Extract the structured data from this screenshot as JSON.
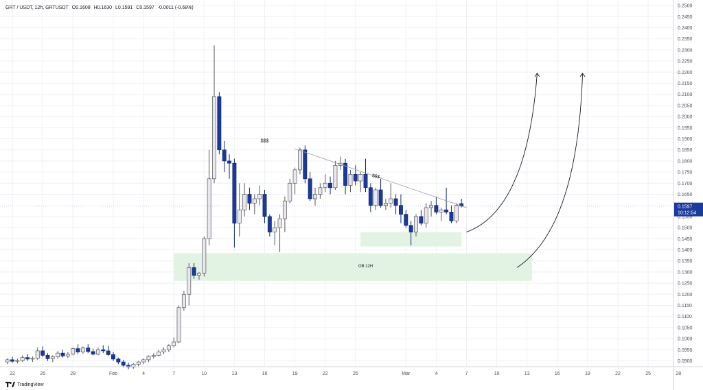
{
  "legend": {
    "symbol": "GRT / USDT, 12h, GRTUSDT",
    "open": "O0.1608",
    "high": "H0.1630",
    "low": "L0.1591",
    "close": "C0.1597",
    "change": "-0.0011 (-0.68%)"
  },
  "price_tag": {
    "price": "0.1597",
    "countdown": "10:12:54"
  },
  "brand": {
    "name": "TradingView"
  },
  "annotations": {
    "liquidity_top": "$$$",
    "liquidity_trend": "$$$",
    "order_block": "OB 12H"
  },
  "colors": {
    "bull_body": "#e8e8ee",
    "bull_border": "#555555",
    "bear_body": "#1a3a9c",
    "bear_border": "#0f2670",
    "zone": "#e3f3e3",
    "price_tag": "#1a3a9c",
    "grid": "#eef0f4",
    "axis_text": "#4a4e5a"
  },
  "chart_data": {
    "type": "candlestick",
    "timeframe": "12h",
    "ylim": [
      0.088,
      0.2525
    ],
    "y_ticks": [
      "0.0900",
      "0.0950",
      "0.1000",
      "0.1050",
      "0.1100",
      "0.1150",
      "0.1200",
      "0.1250",
      "0.1300",
      "0.1350",
      "0.1400",
      "0.1450",
      "0.1500",
      "0.1550",
      "0.1650",
      "0.1700",
      "0.1750",
      "0.1800",
      "0.1850",
      "0.1900",
      "0.1950",
      "0.2000",
      "0.2050",
      "0.2100",
      "0.2150",
      "0.2200",
      "0.2250",
      "0.2300",
      "0.2350",
      "0.2400",
      "0.2450",
      "0.2500"
    ],
    "x_ticks": [
      {
        "label": "22",
        "day": -10
      },
      {
        "label": "25",
        "day": -7
      },
      {
        "label": "28",
        "day": -4
      },
      {
        "label": "Feb",
        "day": 0
      },
      {
        "label": "4",
        "day": 3
      },
      {
        "label": "7",
        "day": 6
      },
      {
        "label": "10",
        "day": 9
      },
      {
        "label": "13",
        "day": 12
      },
      {
        "label": "16",
        "day": 15
      },
      {
        "label": "19",
        "day": 18
      },
      {
        "label": "22",
        "day": 21
      },
      {
        "label": "25",
        "day": 24
      },
      {
        "label": "Mar",
        "day": 29
      },
      {
        "label": "4",
        "day": 32
      },
      {
        "label": "7",
        "day": 35
      },
      {
        "label": "10",
        "day": 38
      },
      {
        "label": "13",
        "day": 41
      },
      {
        "label": "16",
        "day": 44
      },
      {
        "label": "19",
        "day": 47
      },
      {
        "label": "22",
        "day": 50
      },
      {
        "label": "25",
        "day": 53
      },
      {
        "label": "28",
        "day": 56
      }
    ],
    "candles_start_day": -10.5,
    "candles_step_day": 0.5,
    "candles": [
      [
        0.0895,
        0.0912,
        0.0885,
        0.0905
      ],
      [
        0.0905,
        0.0918,
        0.0892,
        0.0898
      ],
      [
        0.0898,
        0.091,
        0.0888,
        0.0902
      ],
      [
        0.0902,
        0.0925,
        0.0895,
        0.0915
      ],
      [
        0.0915,
        0.093,
        0.09,
        0.0908
      ],
      [
        0.0908,
        0.092,
        0.0895,
        0.0912
      ],
      [
        0.0912,
        0.096,
        0.0905,
        0.0945
      ],
      [
        0.0945,
        0.0965,
        0.0918,
        0.0925
      ],
      [
        0.0925,
        0.0935,
        0.09,
        0.091
      ],
      [
        0.091,
        0.0925,
        0.0895,
        0.0918
      ],
      [
        0.0918,
        0.0945,
        0.091,
        0.0935
      ],
      [
        0.0935,
        0.095,
        0.0915,
        0.0922
      ],
      [
        0.0922,
        0.094,
        0.0912,
        0.093
      ],
      [
        0.093,
        0.096,
        0.0925,
        0.0955
      ],
      [
        0.0955,
        0.0975,
        0.093,
        0.094
      ],
      [
        0.094,
        0.0965,
        0.0932,
        0.0958
      ],
      [
        0.0958,
        0.0975,
        0.0935,
        0.0942
      ],
      [
        0.0942,
        0.0955,
        0.0925,
        0.093
      ],
      [
        0.093,
        0.096,
        0.0925,
        0.095
      ],
      [
        0.095,
        0.097,
        0.0935,
        0.0945
      ],
      [
        0.0945,
        0.0968,
        0.0922,
        0.0928
      ],
      [
        0.0928,
        0.094,
        0.09,
        0.0908
      ],
      [
        0.0908,
        0.0915,
        0.0885,
        0.0895
      ],
      [
        0.0895,
        0.0905,
        0.087,
        0.088
      ],
      [
        0.088,
        0.0892,
        0.0862,
        0.0872
      ],
      [
        0.0872,
        0.089,
        0.0865,
        0.0885
      ],
      [
        0.0885,
        0.09,
        0.0875,
        0.0895
      ],
      [
        0.0895,
        0.091,
        0.0885,
        0.0905
      ],
      [
        0.0905,
        0.0925,
        0.0895,
        0.092
      ],
      [
        0.092,
        0.0935,
        0.091,
        0.0925
      ],
      [
        0.0925,
        0.095,
        0.092,
        0.094
      ],
      [
        0.094,
        0.096,
        0.093,
        0.095
      ],
      [
        0.095,
        0.0975,
        0.094,
        0.0968
      ],
      [
        0.0968,
        0.1005,
        0.096,
        0.0985
      ],
      [
        0.0985,
        0.115,
        0.098,
        0.114
      ],
      [
        0.114,
        0.1215,
        0.1125,
        0.12
      ],
      [
        0.12,
        0.134,
        0.115,
        0.132
      ],
      [
        0.132,
        0.134,
        0.127,
        0.1285
      ],
      [
        0.1285,
        0.13,
        0.1265,
        0.1295
      ],
      [
        0.1295,
        0.146,
        0.128,
        0.145
      ],
      [
        0.145,
        0.185,
        0.142,
        0.172
      ],
      [
        0.172,
        0.232,
        0.17,
        0.209
      ],
      [
        0.209,
        0.211,
        0.183,
        0.185
      ],
      [
        0.185,
        0.189,
        0.175,
        0.18
      ],
      [
        0.18,
        0.183,
        0.172,
        0.179
      ],
      [
        0.179,
        0.181,
        0.141,
        0.152
      ],
      [
        0.152,
        0.17,
        0.146,
        0.158
      ],
      [
        0.158,
        0.17,
        0.155,
        0.165
      ],
      [
        0.165,
        0.168,
        0.158,
        0.161
      ],
      [
        0.161,
        0.165,
        0.156,
        0.163
      ],
      [
        0.163,
        0.169,
        0.16,
        0.165
      ],
      [
        0.165,
        0.167,
        0.152,
        0.155
      ],
      [
        0.155,
        0.156,
        0.146,
        0.148
      ],
      [
        0.148,
        0.153,
        0.142,
        0.15
      ],
      [
        0.15,
        0.156,
        0.139,
        0.154
      ],
      [
        0.154,
        0.164,
        0.148,
        0.162
      ],
      [
        0.162,
        0.172,
        0.161,
        0.17
      ],
      [
        0.17,
        0.177,
        0.165,
        0.176
      ],
      [
        0.176,
        0.186,
        0.174,
        0.185
      ],
      [
        0.185,
        0.187,
        0.17,
        0.172
      ],
      [
        0.172,
        0.175,
        0.162,
        0.163
      ],
      [
        0.163,
        0.168,
        0.16,
        0.165
      ],
      [
        0.165,
        0.17,
        0.163,
        0.168
      ],
      [
        0.168,
        0.174,
        0.166,
        0.17
      ],
      [
        0.17,
        0.173,
        0.165,
        0.168
      ],
      [
        0.168,
        0.18,
        0.167,
        0.178
      ],
      [
        0.178,
        0.182,
        0.176,
        0.179
      ],
      [
        0.179,
        0.181,
        0.165,
        0.169
      ],
      [
        0.169,
        0.176,
        0.166,
        0.174
      ],
      [
        0.174,
        0.178,
        0.169,
        0.171
      ],
      [
        0.171,
        0.175,
        0.166,
        0.174
      ],
      [
        0.174,
        0.181,
        0.166,
        0.168
      ],
      [
        0.168,
        0.17,
        0.157,
        0.16
      ],
      [
        0.16,
        0.168,
        0.158,
        0.167
      ],
      [
        0.167,
        0.172,
        0.159,
        0.16
      ],
      [
        0.16,
        0.163,
        0.158,
        0.161
      ],
      [
        0.161,
        0.17,
        0.159,
        0.163
      ],
      [
        0.163,
        0.165,
        0.156,
        0.16
      ],
      [
        0.16,
        0.165,
        0.152,
        0.156
      ],
      [
        0.156,
        0.158,
        0.15,
        0.151
      ],
      [
        0.151,
        0.153,
        0.142,
        0.148
      ],
      [
        0.148,
        0.156,
        0.146,
        0.155
      ],
      [
        0.155,
        0.158,
        0.151,
        0.152
      ],
      [
        0.152,
        0.161,
        0.15,
        0.159
      ],
      [
        0.159,
        0.162,
        0.155,
        0.16
      ],
      [
        0.16,
        0.164,
        0.156,
        0.157
      ],
      [
        0.157,
        0.159,
        0.153,
        0.158
      ],
      [
        0.158,
        0.168,
        0.156,
        0.157
      ],
      [
        0.157,
        0.16,
        0.152,
        0.153
      ],
      [
        0.153,
        0.161,
        0.152,
        0.16
      ],
      [
        0.1608,
        0.163,
        0.1591,
        0.1597
      ]
    ],
    "zones": [
      {
        "name": "small-demand",
        "from_day": 24.5,
        "to_day": 34.5,
        "top": 0.148,
        "bottom": 0.1415
      },
      {
        "name": "order-block",
        "from_day": 6.0,
        "to_day": 41.5,
        "top": 0.1385,
        "bottom": 0.126
      }
    ],
    "trendline": {
      "from": [
        18.0,
        0.1855
      ],
      "to": [
        35.0,
        0.159
      ]
    },
    "projection_arrows": [
      {
        "from": [
          35.0,
          0.148
        ],
        "ctrl": [
          41.0,
          0.158
        ],
        "to": [
          42.0,
          0.2195
        ]
      },
      {
        "from": [
          40.0,
          0.132
        ],
        "ctrl": [
          46.0,
          0.15
        ],
        "to": [
          46.5,
          0.2195
        ]
      }
    ],
    "label_positions": {
      "liquidity_top": [
        15.0,
        0.1885
      ],
      "liquidity_trend": [
        26.0,
        0.1725
      ],
      "order_block": [
        25.0,
        0.1322
      ]
    }
  }
}
